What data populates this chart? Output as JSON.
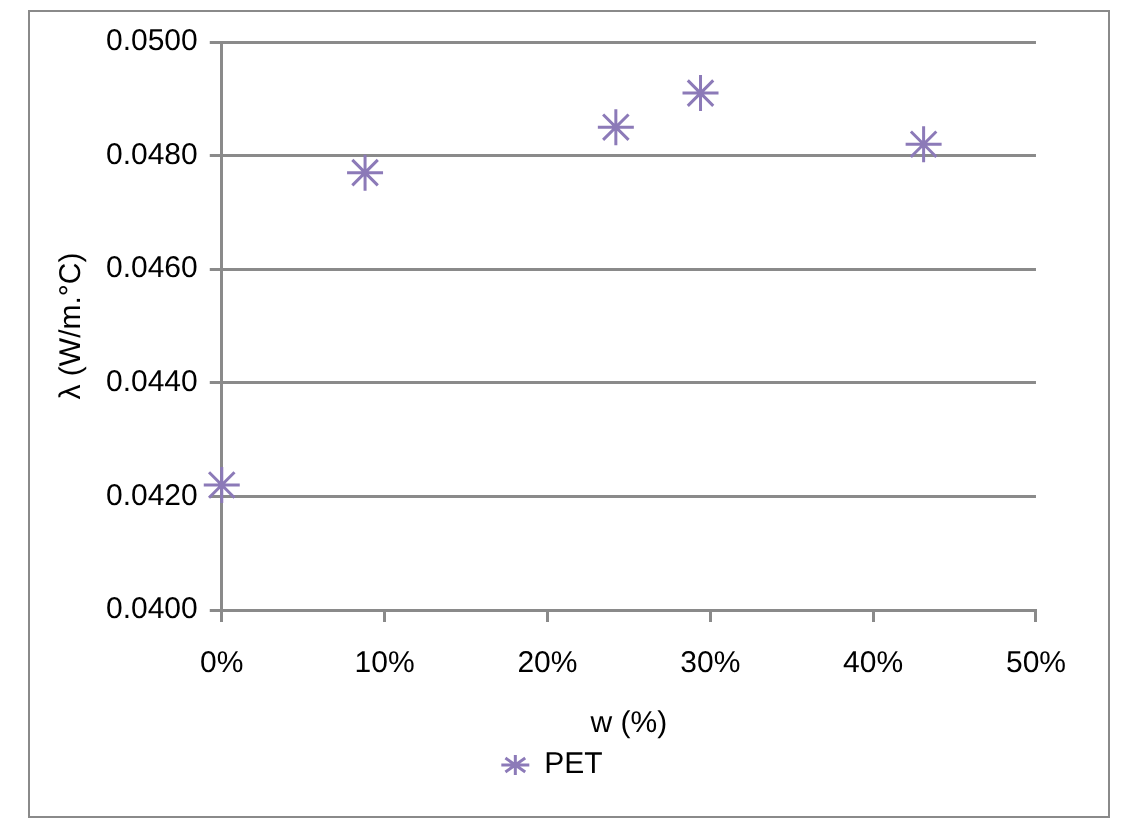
{
  "chart_data": {
    "type": "scatter",
    "xlabel": "w (%)",
    "ylabel": "λ (W/m.°C)",
    "x": [
      0,
      8.8,
      24.2,
      29.4,
      43.1
    ],
    "series": [
      {
        "name": "PET",
        "color": "#8c7ab8",
        "values": [
          0.0422,
          0.0477,
          0.0485,
          0.0491,
          0.0482
        ]
      }
    ],
    "xlim": [
      0,
      50
    ],
    "xticks": [
      {
        "value": 0,
        "label": "0%"
      },
      {
        "value": 10,
        "label": "10%"
      },
      {
        "value": 20,
        "label": "20%"
      },
      {
        "value": 30,
        "label": "30%"
      },
      {
        "value": 40,
        "label": "40%"
      },
      {
        "value": 50,
        "label": "50%"
      }
    ],
    "ylim": [
      0.04,
      0.05
    ],
    "yticks": [
      {
        "value": 0.04,
        "label": "0.0400"
      },
      {
        "value": 0.042,
        "label": "0.0420"
      },
      {
        "value": 0.044,
        "label": "0.0440"
      },
      {
        "value": 0.046,
        "label": "0.0460"
      },
      {
        "value": 0.048,
        "label": "0.0480"
      },
      {
        "value": 0.05,
        "label": "0.0500"
      }
    ],
    "grid": "y",
    "legend": "bottom",
    "marker": "cross"
  }
}
